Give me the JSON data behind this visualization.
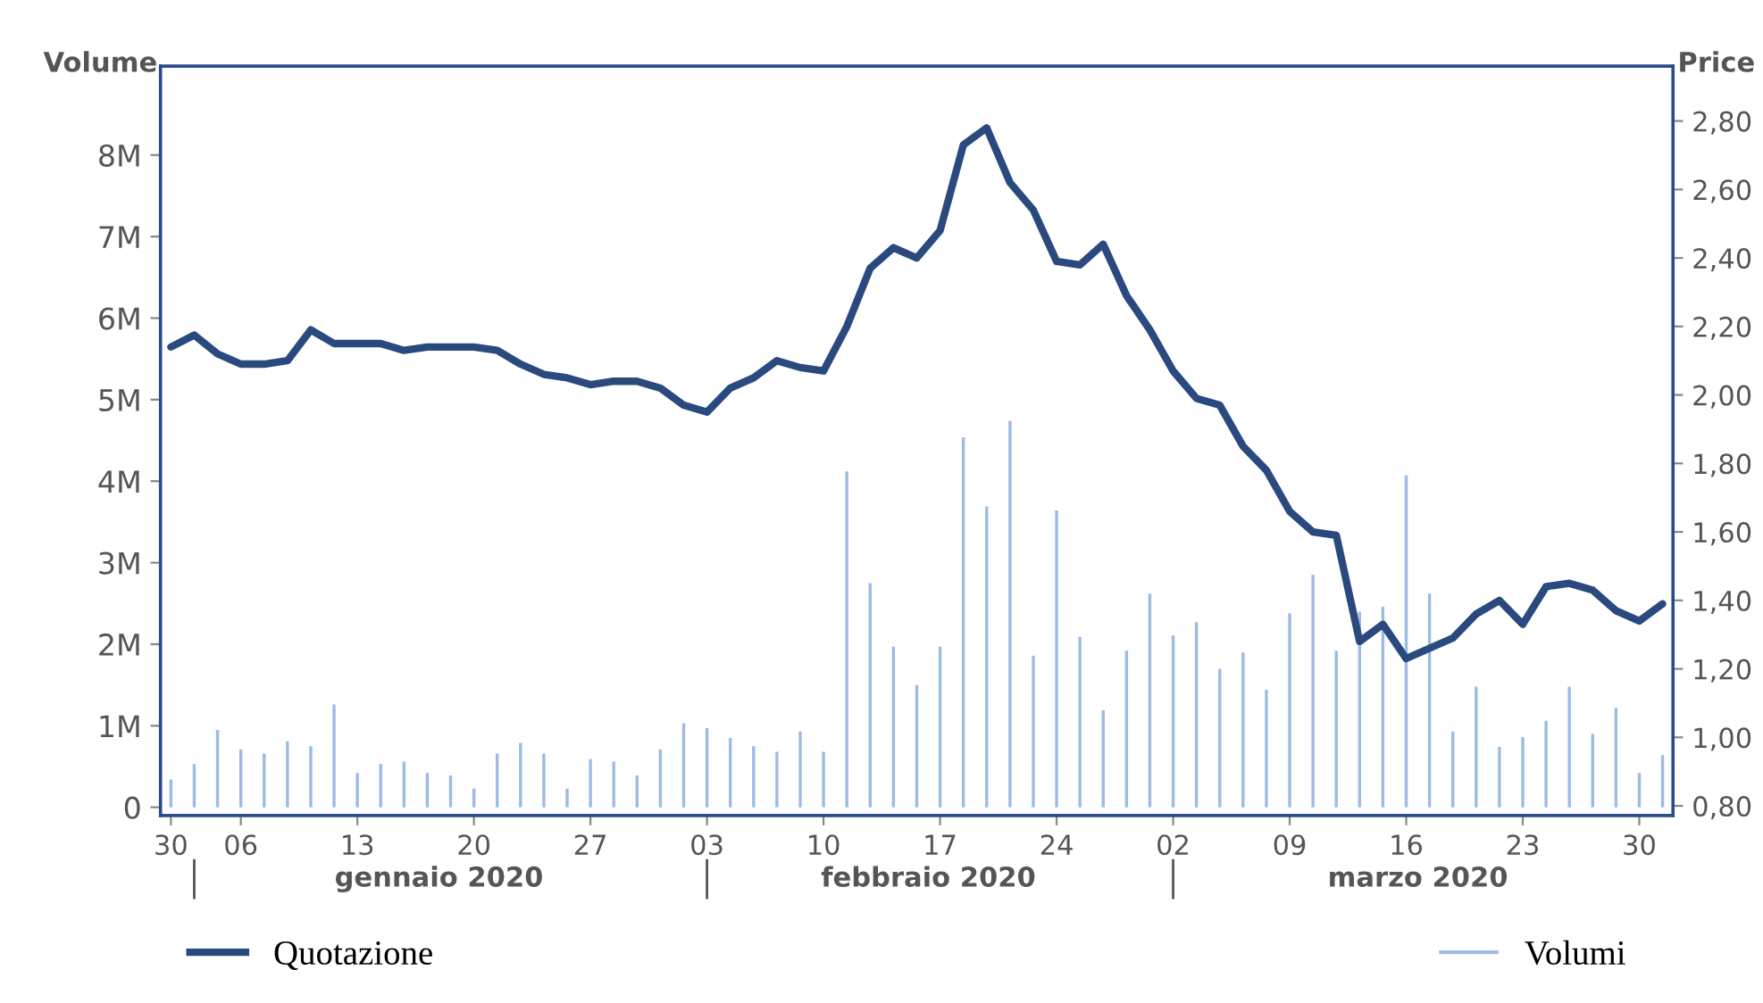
{
  "chart_data": {
    "type": "bar",
    "ylabel": "Volume",
    "y2label": "Price",
    "categories": [
      "30",
      null,
      null,
      "06",
      null,
      null,
      null,
      null,
      "13",
      null,
      null,
      null,
      null,
      "20",
      null,
      null,
      null,
      null,
      "27",
      null,
      null,
      null,
      null,
      "03",
      null,
      null,
      null,
      null,
      "10",
      null,
      null,
      null,
      null,
      "17",
      null,
      null,
      null,
      null,
      "24",
      null,
      null,
      null,
      null,
      "02",
      null,
      null,
      null,
      null,
      "09",
      null,
      null,
      null,
      null,
      "16",
      null,
      null,
      null,
      null,
      "23",
      null,
      null,
      null,
      null,
      "30",
      null
    ],
    "series": [
      {
        "name": "Volumi",
        "axis": "y",
        "color": "#9dbbe3",
        "values": [
          0.34,
          0.53,
          0.95,
          0.71,
          0.66,
          0.81,
          0.75,
          1.26,
          0.42,
          0.53,
          0.56,
          0.42,
          0.39,
          0.23,
          0.66,
          0.79,
          0.66,
          0.23,
          0.59,
          0.56,
          0.39,
          0.71,
          1.03,
          0.97,
          0.85,
          0.75,
          0.68,
          0.93,
          0.68,
          4.12,
          2.75,
          1.97,
          1.5,
          1.97,
          4.54,
          3.69,
          4.74,
          1.86,
          3.64,
          2.09,
          1.19,
          1.92,
          2.62,
          2.11,
          2.27,
          1.7,
          1.9,
          1.44,
          2.38,
          2.85,
          1.92,
          2.4,
          2.46,
          4.07,
          2.62,
          0.93,
          1.48,
          0.74,
          0.86,
          1.06,
          1.48,
          0.9,
          1.22,
          0.42,
          0.64
        ]
      },
      {
        "name": "Quotazione",
        "type": "line",
        "axis": "y2",
        "color": "#2a4a7f",
        "values": [
          2.14,
          2.175,
          2.12,
          2.09,
          2.09,
          2.1,
          2.19,
          2.15,
          2.15,
          2.15,
          2.13,
          2.14,
          2.14,
          2.14,
          2.13,
          2.09,
          2.06,
          2.05,
          2.03,
          2.04,
          2.04,
          2.02,
          1.97,
          1.95,
          2.02,
          2.05,
          2.1,
          2.08,
          2.07,
          2.2,
          2.37,
          2.43,
          2.4,
          2.48,
          2.73,
          2.78,
          2.62,
          2.54,
          2.39,
          2.38,
          2.44,
          2.29,
          2.19,
          2.07,
          1.99,
          1.97,
          1.85,
          1.78,
          1.66,
          1.6,
          1.59,
          1.28,
          1.33,
          1.23,
          1.26,
          1.29,
          1.36,
          1.4,
          1.33,
          1.44,
          1.45,
          1.43,
          1.37,
          1.34,
          1.39
        ]
      }
    ],
    "ylim": [
      -0.1,
      9.09
    ],
    "yticks": [
      {
        "value": 0,
        "label": "0"
      },
      {
        "value": 1,
        "label": "1M"
      },
      {
        "value": 2,
        "label": "2M"
      },
      {
        "value": 3,
        "label": "3M"
      },
      {
        "value": 4,
        "label": "4M"
      },
      {
        "value": 5,
        "label": "5M"
      },
      {
        "value": 6,
        "label": "6M"
      },
      {
        "value": 7,
        "label": "7M"
      },
      {
        "value": 8,
        "label": "8M"
      }
    ],
    "y2lim": [
      0.772,
      2.96
    ],
    "y2ticks": [
      {
        "value": 0.8,
        "label": "0,80"
      },
      {
        "value": 1.0,
        "label": "1,00"
      },
      {
        "value": 1.2,
        "label": "1,20"
      },
      {
        "value": 1.4,
        "label": "1,40"
      },
      {
        "value": 1.6,
        "label": "1,60"
      },
      {
        "value": 1.8,
        "label": "1,80"
      },
      {
        "value": 2.0,
        "label": "2,00"
      },
      {
        "value": 2.2,
        "label": "2,20"
      },
      {
        "value": 2.4,
        "label": "2,40"
      },
      {
        "value": 2.6,
        "label": "2,60"
      },
      {
        "value": 2.8,
        "label": "2,80"
      }
    ],
    "annotations": [
      "gennaio 2020",
      "febbraio 2020",
      "marzo 2020"
    ],
    "grid": false,
    "legend": "bottom"
  }
}
